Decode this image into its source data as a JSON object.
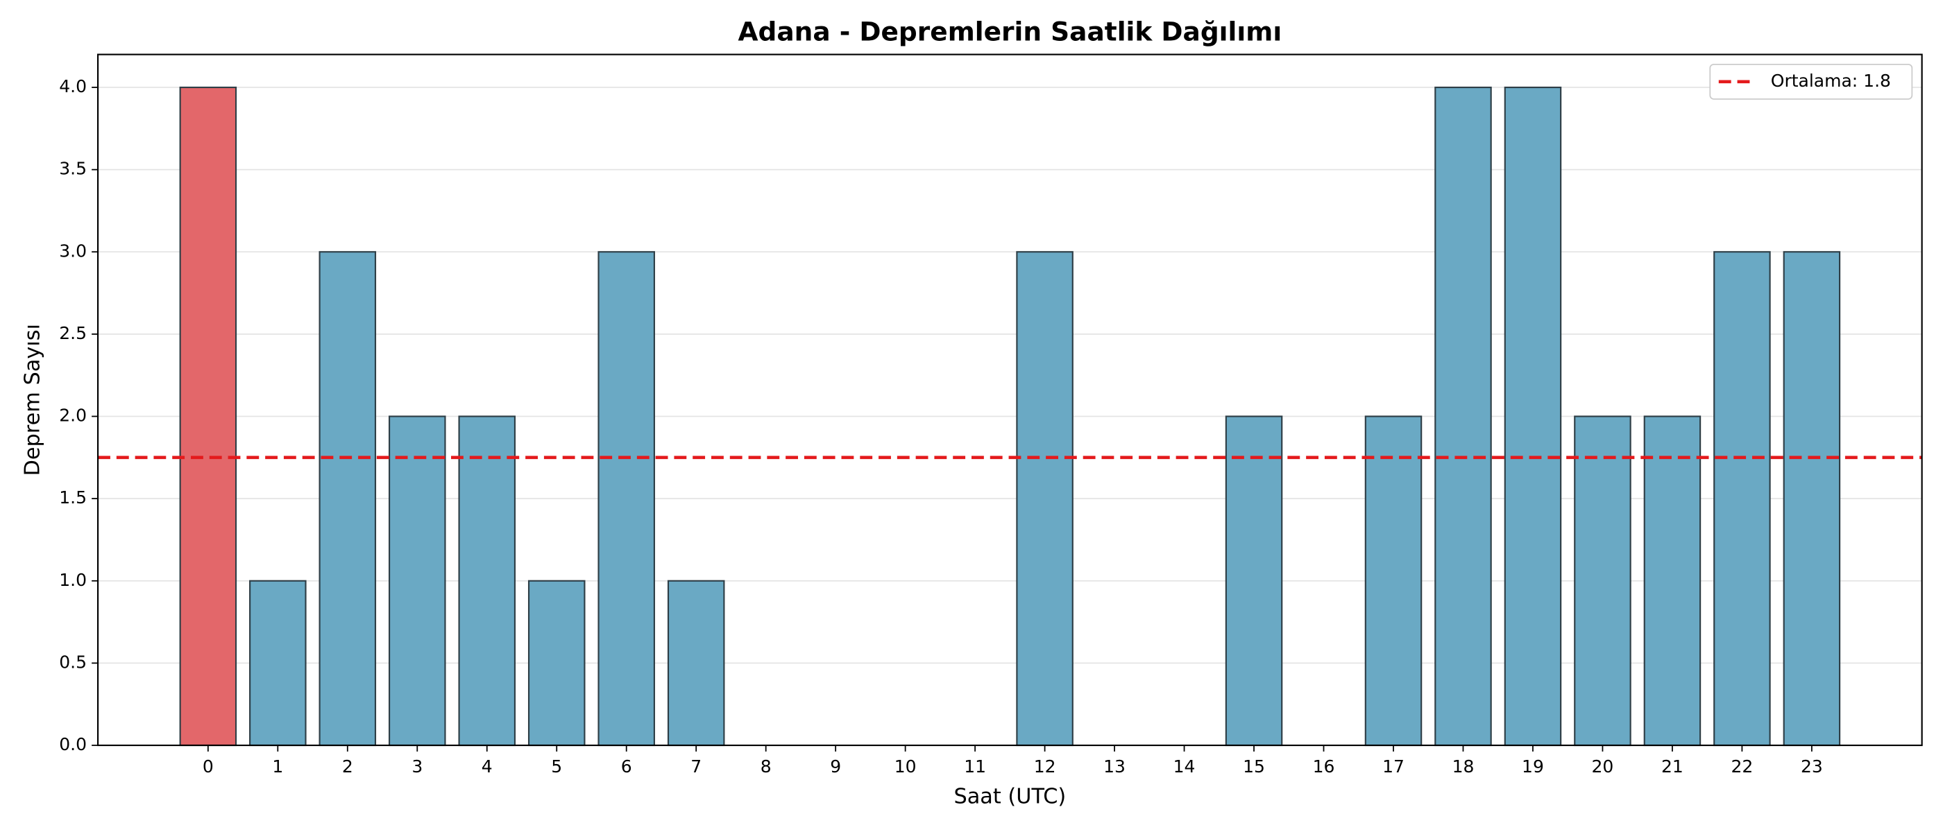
{
  "chart_data": {
    "type": "bar",
    "title": "Adana - Depremlerin Saatlik Dağılımı",
    "xlabel": "Saat (UTC)",
    "ylabel": "Deprem Sayısı",
    "categories": [
      "0",
      "1",
      "2",
      "3",
      "4",
      "5",
      "6",
      "7",
      "8",
      "9",
      "10",
      "11",
      "12",
      "13",
      "14",
      "15",
      "16",
      "17",
      "18",
      "19",
      "20",
      "21",
      "22",
      "23"
    ],
    "values": [
      4,
      1,
      3,
      2,
      2,
      1,
      3,
      1,
      0,
      0,
      0,
      0,
      3,
      0,
      0,
      2,
      0,
      2,
      4,
      4,
      2,
      2,
      3,
      3
    ],
    "colors": [
      "#e3676a",
      "#6aa9c4",
      "#6aa9c4",
      "#6aa9c4",
      "#6aa9c4",
      "#6aa9c4",
      "#6aa9c4",
      "#6aa9c4",
      "#6aa9c4",
      "#6aa9c4",
      "#6aa9c4",
      "#6aa9c4",
      "#6aa9c4",
      "#6aa9c4",
      "#6aa9c4",
      "#6aa9c4",
      "#6aa9c4",
      "#6aa9c4",
      "#6aa9c4",
      "#6aa9c4",
      "#6aa9c4",
      "#6aa9c4",
      "#6aa9c4",
      "#6aa9c4"
    ],
    "edge_color": "#2e3e46",
    "ylim": [
      0,
      4.2
    ],
    "yticks": [
      {
        "value": 0,
        "label": "0.0"
      },
      {
        "value": 0.5,
        "label": "0.5"
      },
      {
        "value": 1,
        "label": "1.0"
      },
      {
        "value": 1.5,
        "label": "1.5"
      },
      {
        "value": 2,
        "label": "2.0"
      },
      {
        "value": 2.5,
        "label": "2.5"
      },
      {
        "value": 3,
        "label": "3.0"
      },
      {
        "value": 3.5,
        "label": "3.5"
      },
      {
        "value": 4,
        "label": "4.0"
      }
    ],
    "grid": true,
    "mean_line": {
      "value": 1.75,
      "label": "Ortalama: 1.8",
      "color": "#e41a1c"
    },
    "legend_position": "upper right"
  }
}
